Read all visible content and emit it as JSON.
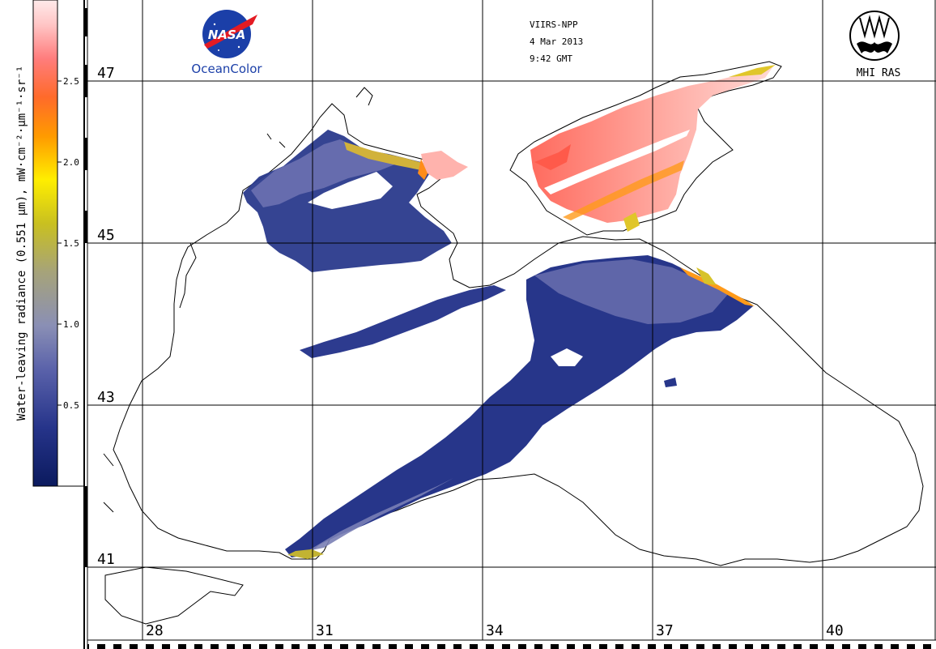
{
  "header": {
    "sensor": "VIIRS-NPP",
    "date": "4 Mar 2013",
    "time": "9:42 GMT"
  },
  "logos": {
    "left_caption": "OceanColor",
    "left_mark": "NASA",
    "right_caption": "MHI RAS"
  },
  "colorbar": {
    "label": "Water-leaving radiance (0.551 μm), mW·cm⁻²·μm⁻¹·sr⁻¹",
    "ticks": [
      "0.5",
      "1.0",
      "1.5",
      "2.0",
      "2.5"
    ],
    "tick_values": [
      0.5,
      1.0,
      1.5,
      2.0,
      2.5
    ],
    "range": [
      0.0,
      3.0
    ],
    "colors": [
      "#0b1a5e",
      "#26348a",
      "#5a62aa",
      "#8a8fb5",
      "#a6a37a",
      "#c9c020",
      "#ffee00",
      "#ff9a00",
      "#ff6a2a",
      "#ff7d7d",
      "#ffc6c6",
      "#ffeaea"
    ]
  },
  "map": {
    "latitudes": [
      "47",
      "45",
      "43",
      "41"
    ],
    "longitudes": [
      "28",
      "31",
      "34",
      "37",
      "40"
    ],
    "coast_color": "#000000",
    "grid_color": "#000000",
    "land_color": "#ffffff"
  }
}
